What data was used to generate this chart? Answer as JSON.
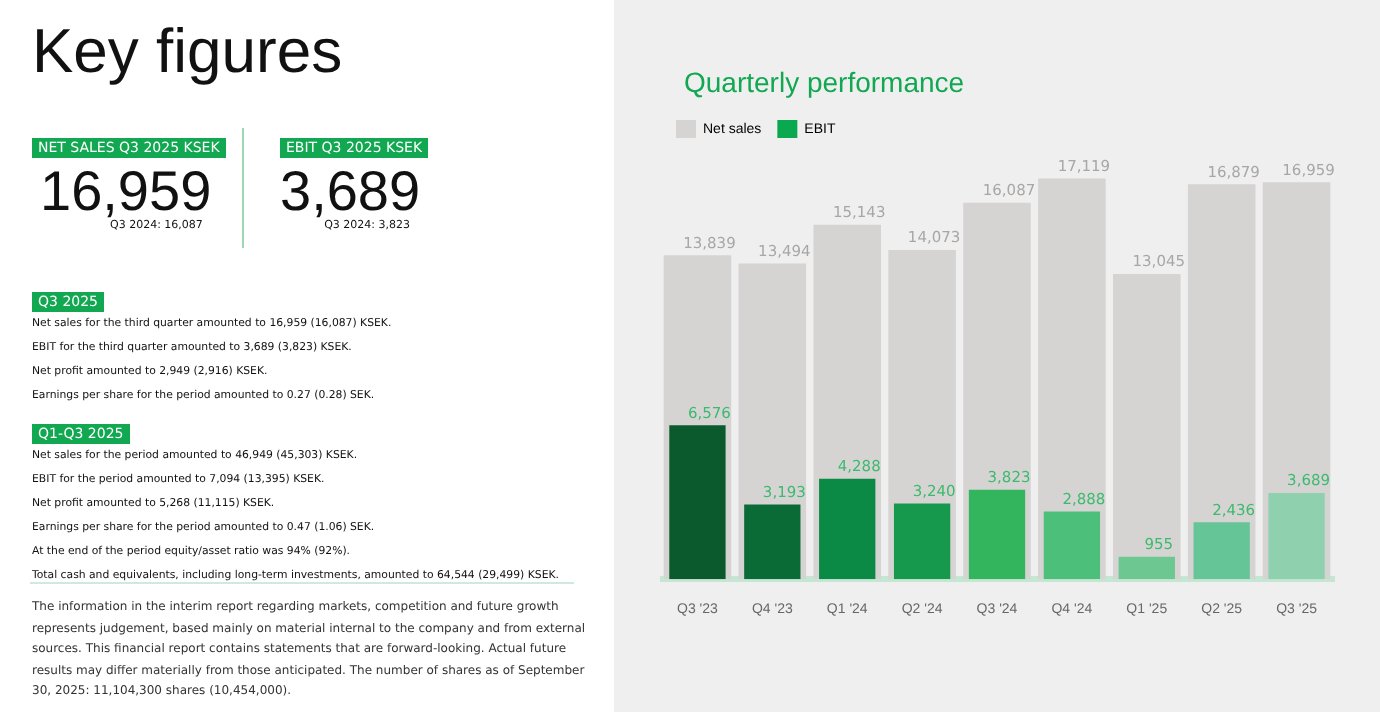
{
  "chart_data": {
    "type": "bar",
    "title": "Quarterly performance",
    "categories": [
      "Q3 '23",
      "Q4 '23",
      "Q1 '24",
      "Q2 '24",
      "Q3 '24",
      "Q4 '24",
      "Q1 '25",
      "Q2 '25",
      "Q3 '25"
    ],
    "series": [
      {
        "name": "Net sales",
        "color": "#d6d4d3",
        "values": [
          13839,
          13494,
          15143,
          14073,
          16087,
          17119,
          13045,
          16879,
          16959
        ],
        "value_labels": [
          "13,839",
          "13,494",
          "15,143",
          "14,073",
          "16,087",
          "17,119",
          "13,045",
          "16,879",
          "16,959"
        ]
      },
      {
        "name": "EBIT",
        "color": "#0aa84f",
        "colors": [
          "#0b5a2e",
          "#0b6b36",
          "#0b8a45",
          "#16994c",
          "#33b55e",
          "#4cbf7b",
          "#6cc791",
          "#66c596",
          "#8fd0af"
        ],
        "values": [
          6576,
          3193,
          4288,
          3240,
          3823,
          2888,
          955,
          2436,
          3689
        ],
        "value_labels": [
          "6,576",
          "3,193",
          "4,288",
          "3,240",
          "3,823",
          "2,888",
          "955",
          "2,436",
          "3,689"
        ]
      }
    ],
    "legend": "top left",
    "tick_labels": "x",
    "grid": false,
    "annotations": [
      "Key figures",
      "NET SALES Q3 2025 KSEK",
      "16,959",
      "Q3 2024: 16,087",
      "EBIT Q3 2025 KSEK",
      "3,689",
      "Q3 2024: 3,823",
      "Q3 2025",
      "Net sales for the third quarter amounted to 16,959 (16,087) KSEK.",
      "EBIT for the third quarter amounted to 3,689 (3,823) KSEK.",
      "Net profit amounted to 2,949 (2,916) KSEK.",
      "Earnings per share for the period amounted to 0.27 (0.28) SEK.",
      "Q1-Q3 2025",
      "Net sales for the period amounted to 46,949 (45,303) KSEK.",
      "EBIT for the period amounted to 7,094 (13,395) KSEK.",
      "Net profit amounted to 5,268 (11,115) KSEK.",
      "Earnings per share for the period amounted to 0.47 (1.06) SEK.",
      "At the end of the period equity/asset ratio was 94% (92%).",
      "Total cash and equivalents, including long-term investments, amounted to 64,544 (29,499) KSEK.",
      "The information in the interim report regarding markets, competition and future growth represents judgement, based mainly on material internal to the company and from external sources. This financial report contains statements that are forward-looking. Actual future results may differ materially from those anticipated. The number of shares as of September 30, 2025: 11,104,300 shares (10,454,000)."
    ]
  }
}
